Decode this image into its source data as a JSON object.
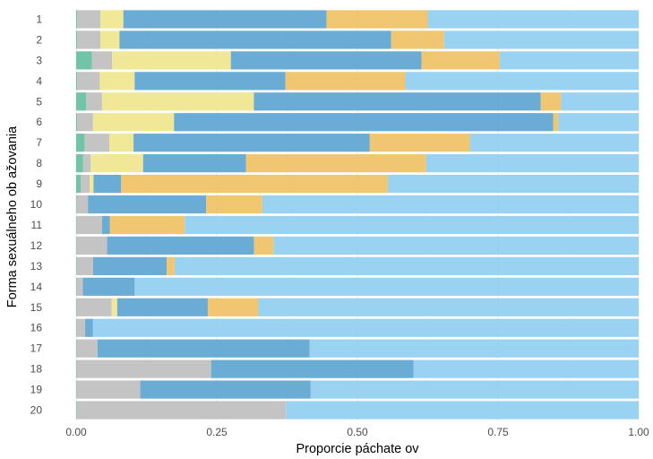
{
  "chart_data": {
    "type": "bar",
    "orientation": "horizontal",
    "stacked": true,
    "xlabel": "Proporcie páchate ov",
    "ylabel": "Forma sexuálneho ob ažovania",
    "xlim": [
      0,
      1
    ],
    "x_ticks": [
      "0.00",
      "0.25",
      "0.50",
      "0.75",
      "1.00"
    ],
    "grid": true,
    "legend": "none",
    "categories": [
      "1",
      "2",
      "3",
      "4",
      "5",
      "6",
      "7",
      "8",
      "9",
      "10",
      "11",
      "12",
      "13",
      "14",
      "15",
      "16",
      "17",
      "18",
      "19",
      "20"
    ],
    "series": [
      {
        "color": "#5fbf9c",
        "values": [
          0.002,
          0.002,
          0.028,
          0.002,
          0.018,
          0.002,
          0.015,
          0.012,
          0.008,
          0.001,
          0.001,
          0.001,
          0.001,
          0.001,
          0.001,
          0.001,
          0.001,
          0.001,
          0.001,
          0.001
        ]
      },
      {
        "color": "#bebebe",
        "values": [
          0.041,
          0.041,
          0.036,
          0.04,
          0.028,
          0.028,
          0.044,
          0.014,
          0.016,
          0.02,
          0.045,
          0.054,
          0.029,
          0.011,
          0.062,
          0.015,
          0.037,
          0.239,
          0.113,
          0.372
        ]
      },
      {
        "color": "#f0e68c",
        "values": [
          0.041,
          0.034,
          0.211,
          0.062,
          0.27,
          0.144,
          0.043,
          0.093,
          0.007,
          0.0,
          0.0,
          0.0,
          0.0,
          0.0,
          0.01,
          0.0,
          0.0,
          0.0,
          0.0,
          0.0
        ]
      },
      {
        "color": "#5ba3d0",
        "values": [
          0.361,
          0.483,
          0.339,
          0.268,
          0.51,
          0.674,
          0.42,
          0.183,
          0.049,
          0.21,
          0.014,
          0.261,
          0.131,
          0.092,
          0.161,
          0.014,
          0.377,
          0.36,
          0.303,
          0.0
        ]
      },
      {
        "color": "#f0c060",
        "values": [
          0.18,
          0.094,
          0.139,
          0.213,
          0.036,
          0.009,
          0.178,
          0.32,
          0.474,
          0.1,
          0.133,
          0.035,
          0.014,
          0.0,
          0.09,
          0.0,
          0.0,
          0.0,
          0.0,
          0.0
        ]
      },
      {
        "color": "#8fcdf0",
        "values": [
          0.375,
          0.346,
          0.247,
          0.415,
          0.138,
          0.143,
          0.3,
          0.378,
          0.446,
          0.669,
          0.807,
          0.649,
          0.825,
          0.896,
          0.676,
          0.97,
          0.585,
          0.4,
          0.583,
          0.627
        ]
      }
    ]
  }
}
